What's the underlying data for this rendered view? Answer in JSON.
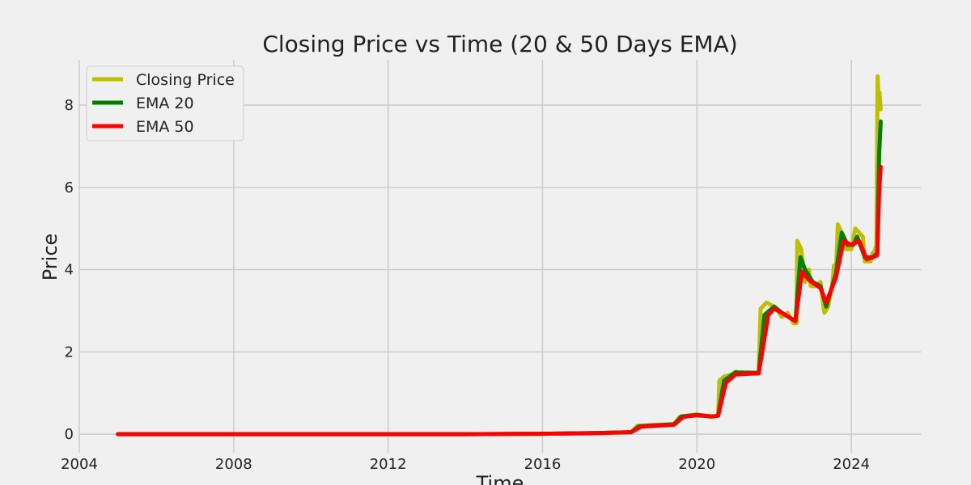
{
  "chart_data": {
    "type": "line",
    "title": "Closing Price vs Time (20 & 50 Days EMA)",
    "xlabel": "Time",
    "ylabel": "Price",
    "xlim": [
      2004,
      2025.8
    ],
    "ylim": [
      -0.45,
      9.1
    ],
    "x_ticks": [
      2004,
      2008,
      2012,
      2016,
      2020,
      2024
    ],
    "y_ticks": [
      0,
      2,
      4,
      6,
      8
    ],
    "grid": true,
    "legend_position": "top-left",
    "series": [
      {
        "name": "Closing Price",
        "color": "#bfbf00",
        "points": [
          [
            2005.0,
            0.0
          ],
          [
            2010.0,
            0.0
          ],
          [
            2014.0,
            0.0
          ],
          [
            2016.0,
            0.01
          ],
          [
            2017.0,
            0.02
          ],
          [
            2017.5,
            0.03
          ],
          [
            2018.3,
            0.05
          ],
          [
            2018.45,
            0.2
          ],
          [
            2018.8,
            0.22
          ],
          [
            2019.3,
            0.24
          ],
          [
            2019.45,
            0.25
          ],
          [
            2019.55,
            0.42
          ],
          [
            2019.8,
            0.46
          ],
          [
            2020.0,
            0.48
          ],
          [
            2020.2,
            0.45
          ],
          [
            2020.35,
            0.42
          ],
          [
            2020.55,
            0.45
          ],
          [
            2020.58,
            1.3
          ],
          [
            2020.7,
            1.4
          ],
          [
            2020.9,
            1.45
          ],
          [
            2021.0,
            1.52
          ],
          [
            2021.1,
            1.48
          ],
          [
            2021.3,
            1.5
          ],
          [
            2021.6,
            1.48
          ],
          [
            2021.65,
            3.05
          ],
          [
            2021.8,
            3.2
          ],
          [
            2022.0,
            3.1
          ],
          [
            2022.1,
            3.0
          ],
          [
            2022.2,
            2.85
          ],
          [
            2022.35,
            2.95
          ],
          [
            2022.5,
            2.7
          ],
          [
            2022.58,
            2.7
          ],
          [
            2022.6,
            4.7
          ],
          [
            2022.7,
            4.5
          ],
          [
            2022.8,
            3.7
          ],
          [
            2022.9,
            4.0
          ],
          [
            2022.95,
            3.6
          ],
          [
            2023.1,
            3.6
          ],
          [
            2023.2,
            3.7
          ],
          [
            2023.3,
            2.95
          ],
          [
            2023.4,
            3.1
          ],
          [
            2023.5,
            3.6
          ],
          [
            2023.55,
            4.1
          ],
          [
            2023.6,
            3.9
          ],
          [
            2023.65,
            5.1
          ],
          [
            2023.75,
            4.9
          ],
          [
            2023.85,
            4.5
          ],
          [
            2024.0,
            4.5
          ],
          [
            2024.1,
            5.0
          ],
          [
            2024.2,
            4.9
          ],
          [
            2024.3,
            4.8
          ],
          [
            2024.35,
            4.2
          ],
          [
            2024.5,
            4.2
          ],
          [
            2024.55,
            4.4
          ],
          [
            2024.6,
            4.45
          ],
          [
            2024.65,
            4.6
          ],
          [
            2024.68,
            8.7
          ],
          [
            2024.71,
            8.0
          ],
          [
            2024.73,
            8.3
          ],
          [
            2024.76,
            7.9
          ]
        ]
      },
      {
        "name": "EMA 20",
        "color": "#008000",
        "points": [
          [
            2005.0,
            0.0
          ],
          [
            2014.0,
            0.0
          ],
          [
            2016.0,
            0.01
          ],
          [
            2017.5,
            0.03
          ],
          [
            2018.3,
            0.05
          ],
          [
            2018.5,
            0.19
          ],
          [
            2019.4,
            0.24
          ],
          [
            2019.6,
            0.43
          ],
          [
            2020.0,
            0.47
          ],
          [
            2020.4,
            0.43
          ],
          [
            2020.55,
            0.45
          ],
          [
            2020.7,
            1.3
          ],
          [
            2021.0,
            1.5
          ],
          [
            2021.6,
            1.49
          ],
          [
            2021.75,
            2.9
          ],
          [
            2022.0,
            3.1
          ],
          [
            2022.2,
            2.95
          ],
          [
            2022.55,
            2.75
          ],
          [
            2022.68,
            4.3
          ],
          [
            2022.8,
            4.0
          ],
          [
            2023.0,
            3.7
          ],
          [
            2023.2,
            3.6
          ],
          [
            2023.35,
            3.1
          ],
          [
            2023.6,
            3.9
          ],
          [
            2023.75,
            4.9
          ],
          [
            2023.9,
            4.6
          ],
          [
            2024.05,
            4.6
          ],
          [
            2024.15,
            4.8
          ],
          [
            2024.35,
            4.3
          ],
          [
            2024.55,
            4.3
          ],
          [
            2024.67,
            4.4
          ],
          [
            2024.72,
            6.8
          ],
          [
            2024.76,
            7.6
          ]
        ]
      },
      {
        "name": "EMA 50",
        "color": "#ff0000",
        "points": [
          [
            2005.0,
            0.0
          ],
          [
            2014.0,
            0.0
          ],
          [
            2016.0,
            0.01
          ],
          [
            2017.5,
            0.03
          ],
          [
            2018.3,
            0.05
          ],
          [
            2018.55,
            0.18
          ],
          [
            2019.4,
            0.23
          ],
          [
            2019.65,
            0.42
          ],
          [
            2020.0,
            0.46
          ],
          [
            2020.4,
            0.43
          ],
          [
            2020.55,
            0.45
          ],
          [
            2020.75,
            1.25
          ],
          [
            2021.0,
            1.45
          ],
          [
            2021.6,
            1.48
          ],
          [
            2021.85,
            2.9
          ],
          [
            2022.0,
            3.05
          ],
          [
            2022.2,
            2.95
          ],
          [
            2022.55,
            2.75
          ],
          [
            2022.72,
            3.95
          ],
          [
            2022.9,
            3.75
          ],
          [
            2023.2,
            3.55
          ],
          [
            2023.35,
            3.2
          ],
          [
            2023.6,
            3.8
          ],
          [
            2023.8,
            4.7
          ],
          [
            2024.0,
            4.6
          ],
          [
            2024.2,
            4.7
          ],
          [
            2024.4,
            4.25
          ],
          [
            2024.55,
            4.3
          ],
          [
            2024.67,
            4.35
          ],
          [
            2024.72,
            5.9
          ],
          [
            2024.76,
            6.5
          ]
        ]
      }
    ]
  }
}
